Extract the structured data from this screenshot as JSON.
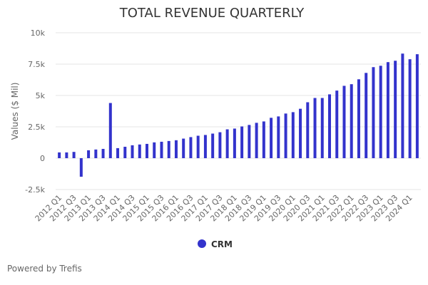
{
  "chart_data": {
    "type": "bar",
    "title": "TOTAL REVENUE QUARTERLY",
    "xlabel": "",
    "ylabel": "Values ($ Mil)",
    "ylim": [
      -2500,
      10000
    ],
    "yticks": [
      -2500,
      0,
      2500,
      5000,
      7500,
      10000
    ],
    "ytick_labels": [
      "-2.5k",
      "0",
      "2.5k",
      "5k",
      "7.5k",
      "10k"
    ],
    "grid": true,
    "legend_position": "bottom-center",
    "categories": [
      "2012 Q1",
      "2012 Q2",
      "2012 Q3",
      "2012 Q4",
      "2013 Q1",
      "2013 Q2",
      "2013 Q3",
      "2013 Q4",
      "2014 Q1",
      "2014 Q2",
      "2014 Q3",
      "2014 Q4",
      "2015 Q1",
      "2015 Q2",
      "2015 Q3",
      "2015 Q4",
      "2016 Q1",
      "2016 Q2",
      "2016 Q3",
      "2016 Q4",
      "2017 Q1",
      "2017 Q2",
      "2017 Q3",
      "2017 Q4",
      "2018 Q1",
      "2018 Q2",
      "2018 Q3",
      "2018 Q4",
      "2019 Q1",
      "2019 Q2",
      "2019 Q3",
      "2019 Q4",
      "2020 Q1",
      "2020 Q2",
      "2020 Q3",
      "2020 Q4",
      "2021 Q1",
      "2021 Q2",
      "2021 Q3",
      "2021 Q4",
      "2022 Q1",
      "2022 Q2",
      "2022 Q3",
      "2022 Q4",
      "2023 Q1",
      "2023 Q2",
      "2023 Q3",
      "2023 Q4",
      "2024 Q1",
      "2024 Q2"
    ],
    "xtick_labels": [
      "2012 Q1",
      "2012 Q3",
      "2013 Q1",
      "2013 Q3",
      "2014 Q1",
      "2014 Q3",
      "2015 Q1",
      "2015 Q3",
      "2016 Q1",
      "2016 Q3",
      "2017 Q1",
      "2017 Q3",
      "2018 Q1",
      "2018 Q3",
      "2019 Q1",
      "2019 Q3",
      "2020 Q1",
      "2020 Q3",
      "2021 Q1",
      "2021 Q3",
      "2022 Q1",
      "2022 Q3",
      "2023 Q1",
      "2023 Q3",
      "2024 Q1"
    ],
    "series": [
      {
        "name": "CRM",
        "color": "#3333cc",
        "values": [
          460,
          460,
          500,
          -1480,
          630,
          690,
          740,
          4400,
          800,
          910,
          1030,
          1090,
          1140,
          1260,
          1310,
          1370,
          1430,
          1560,
          1680,
          1790,
          1850,
          1960,
          2070,
          2300,
          2360,
          2530,
          2650,
          2820,
          2930,
          3220,
          3330,
          3560,
          3670,
          3940,
          4460,
          4800,
          4800,
          5090,
          5390,
          5770,
          5900,
          6290,
          6800,
          7260,
          7370,
          7660,
          7770,
          8340,
          7890,
          8290
        ]
      }
    ]
  },
  "footer": {
    "credit": "Powered by Trefis"
  }
}
